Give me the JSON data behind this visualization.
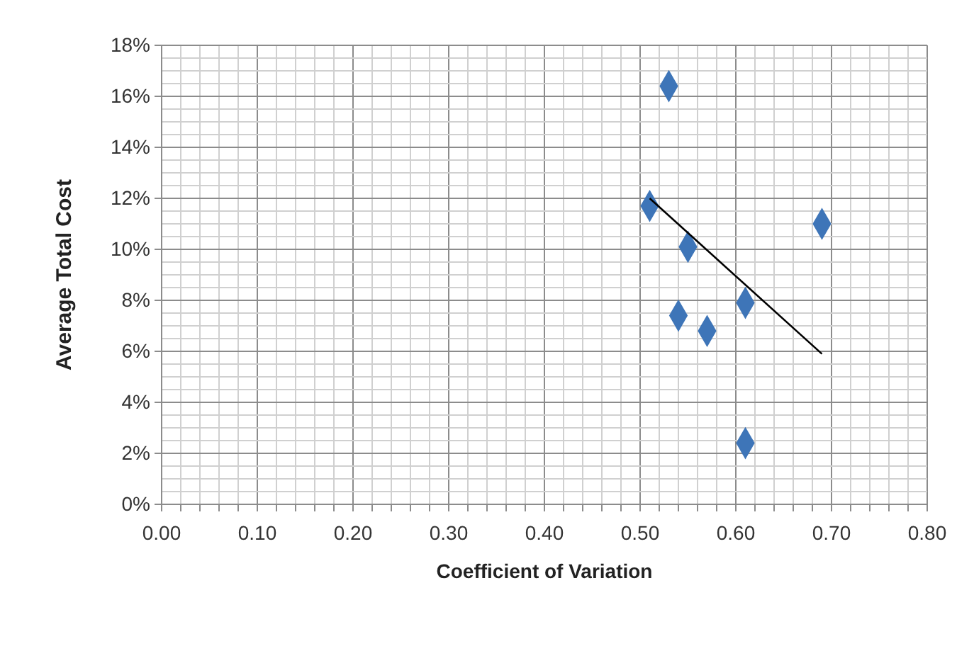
{
  "chart_data": {
    "type": "scatter",
    "xlabel": "Coefficient of Variation",
    "ylabel": "Average Total Cost",
    "marker": "diamond",
    "grid": true,
    "xlim": [
      0,
      0.8
    ],
    "ylim": [
      0,
      18
    ],
    "xticks": [
      {
        "value": 0,
        "label": "0.00"
      },
      {
        "value": 0.02,
        "label": null
      },
      {
        "value": 0.04,
        "label": null
      },
      {
        "value": 0.06,
        "label": null
      },
      {
        "value": 0.08,
        "label": null
      },
      {
        "value": 0.1,
        "label": "0.10"
      },
      {
        "value": 0.12,
        "label": null
      },
      {
        "value": 0.14,
        "label": null
      },
      {
        "value": 0.16,
        "label": null
      },
      {
        "value": 0.18,
        "label": null
      },
      {
        "value": 0.2,
        "label": "0.20"
      },
      {
        "value": 0.22,
        "label": null
      },
      {
        "value": 0.24,
        "label": null
      },
      {
        "value": 0.26,
        "label": null
      },
      {
        "value": 0.28,
        "label": null
      },
      {
        "value": 0.3,
        "label": "0.30"
      },
      {
        "value": 0.32,
        "label": null
      },
      {
        "value": 0.34,
        "label": null
      },
      {
        "value": 0.36,
        "label": null
      },
      {
        "value": 0.38,
        "label": null
      },
      {
        "value": 0.4,
        "label": "0.40"
      },
      {
        "value": 0.42,
        "label": null
      },
      {
        "value": 0.44,
        "label": null
      },
      {
        "value": 0.46,
        "label": null
      },
      {
        "value": 0.48,
        "label": null
      },
      {
        "value": 0.5,
        "label": "0.50"
      },
      {
        "value": 0.52,
        "label": null
      },
      {
        "value": 0.54,
        "label": null
      },
      {
        "value": 0.56,
        "label": null
      },
      {
        "value": 0.58,
        "label": null
      },
      {
        "value": 0.6,
        "label": "0.60"
      },
      {
        "value": 0.62,
        "label": null
      },
      {
        "value": 0.64,
        "label": null
      },
      {
        "value": 0.66,
        "label": null
      },
      {
        "value": 0.68,
        "label": null
      },
      {
        "value": 0.7,
        "label": "0.70"
      },
      {
        "value": 0.72,
        "label": null
      },
      {
        "value": 0.74,
        "label": null
      },
      {
        "value": 0.76,
        "label": null
      },
      {
        "value": 0.78,
        "label": null
      },
      {
        "value": 0.8,
        "label": "0.80"
      }
    ],
    "yticks": [
      {
        "value": 0,
        "label": "0%"
      },
      {
        "value": 2,
        "label": "2%"
      },
      {
        "value": 4,
        "label": "4%"
      },
      {
        "value": 6,
        "label": "6%"
      },
      {
        "value": 8,
        "label": "8%"
      },
      {
        "value": 10,
        "label": "10%"
      },
      {
        "value": 12,
        "label": "12%"
      },
      {
        "value": 14,
        "label": "14%"
      },
      {
        "value": 16,
        "label": "16%"
      },
      {
        "value": 18,
        "label": "18%"
      }
    ],
    "series": [
      {
        "type": "scatter",
        "color": "#3e75b8",
        "x": [
          0.51,
          0.53,
          0.55,
          0.69,
          0.61,
          0.54,
          0.57,
          0.61
        ],
        "values": [
          11.7,
          16.4,
          10.1,
          11.0,
          7.9,
          7.4,
          6.8,
          2.4
        ]
      },
      {
        "type": "line",
        "color": "#000000",
        "marker": "none",
        "x": [
          0.51,
          0.69
        ],
        "values": [
          12.0,
          5.9
        ]
      }
    ]
  }
}
